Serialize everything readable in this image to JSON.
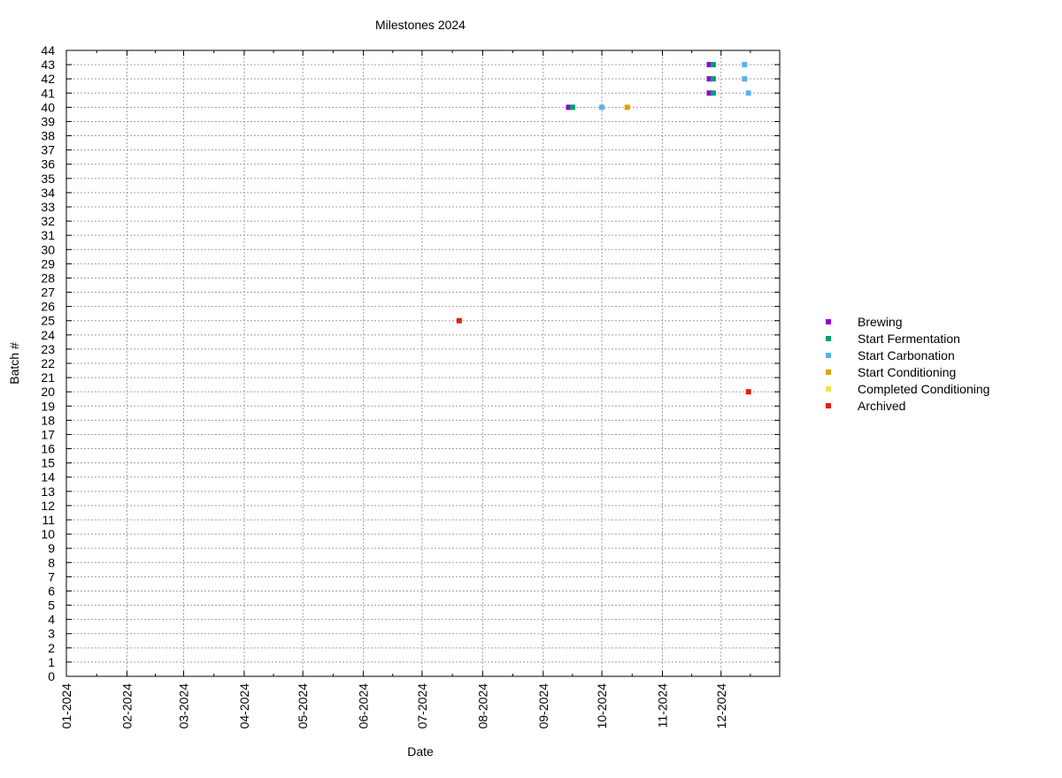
{
  "chart_data": {
    "type": "scatter",
    "title": "Milestones 2024",
    "xlabel": "Date",
    "ylabel": "Batch #",
    "x_axis_type": "date",
    "xlim": [
      "2024-01-01",
      "2024-12-31"
    ],
    "ylim": [
      0,
      44
    ],
    "y_ticks": [
      0,
      1,
      2,
      3,
      4,
      5,
      6,
      7,
      8,
      9,
      10,
      11,
      12,
      13,
      14,
      15,
      16,
      17,
      18,
      19,
      20,
      21,
      22,
      23,
      24,
      25,
      26,
      27,
      28,
      29,
      30,
      31,
      32,
      33,
      34,
      35,
      36,
      37,
      38,
      39,
      40,
      41,
      42,
      43,
      44
    ],
    "x_ticks": [
      {
        "date": "2024-01-01",
        "label": "01-2024"
      },
      {
        "date": "2024-02-01",
        "label": "02-2024"
      },
      {
        "date": "2024-03-01",
        "label": "03-2024"
      },
      {
        "date": "2024-04-01",
        "label": "04-2024"
      },
      {
        "date": "2024-05-01",
        "label": "05-2024"
      },
      {
        "date": "2024-06-01",
        "label": "06-2024"
      },
      {
        "date": "2024-07-01",
        "label": "07-2024"
      },
      {
        "date": "2024-08-01",
        "label": "08-2024"
      },
      {
        "date": "2024-09-01",
        "label": "09-2024"
      },
      {
        "date": "2024-10-01",
        "label": "10-2024"
      },
      {
        "date": "2024-11-01",
        "label": "11-2024"
      },
      {
        "date": "2024-12-01",
        "label": "12-2024"
      }
    ],
    "grid": true,
    "legend_position": "right",
    "series": [
      {
        "name": "Brewing",
        "color": "#9400d3",
        "points": [
          {
            "x": "2024-09-14",
            "y": 40
          },
          {
            "x": "2024-11-25",
            "y": 41
          },
          {
            "x": "2024-11-25",
            "y": 42
          },
          {
            "x": "2024-11-25",
            "y": 43
          }
        ]
      },
      {
        "name": "Start Fermentation",
        "color": "#009e73",
        "points": [
          {
            "x": "2024-09-16",
            "y": 40
          },
          {
            "x": "2024-11-27",
            "y": 41
          },
          {
            "x": "2024-11-27",
            "y": 42
          },
          {
            "x": "2024-11-27",
            "y": 43
          }
        ]
      },
      {
        "name": "Start Carbonation",
        "color": "#56b4e9",
        "points": [
          {
            "x": "2024-10-01",
            "y": 40
          },
          {
            "x": "2024-12-15",
            "y": 41
          },
          {
            "x": "2024-12-13",
            "y": 42
          },
          {
            "x": "2024-12-13",
            "y": 43
          }
        ]
      },
      {
        "name": "Start Conditioning",
        "color": "#e69f00",
        "points": [
          {
            "x": "2024-10-14",
            "y": 40
          }
        ]
      },
      {
        "name": "Completed Conditioning",
        "color": "#f0e442",
        "points": []
      },
      {
        "name": "Archived",
        "color": "#e51e10",
        "points": [
          {
            "x": "2024-07-20",
            "y": 25
          },
          {
            "x": "2024-12-15",
            "y": 20
          }
        ]
      }
    ]
  }
}
